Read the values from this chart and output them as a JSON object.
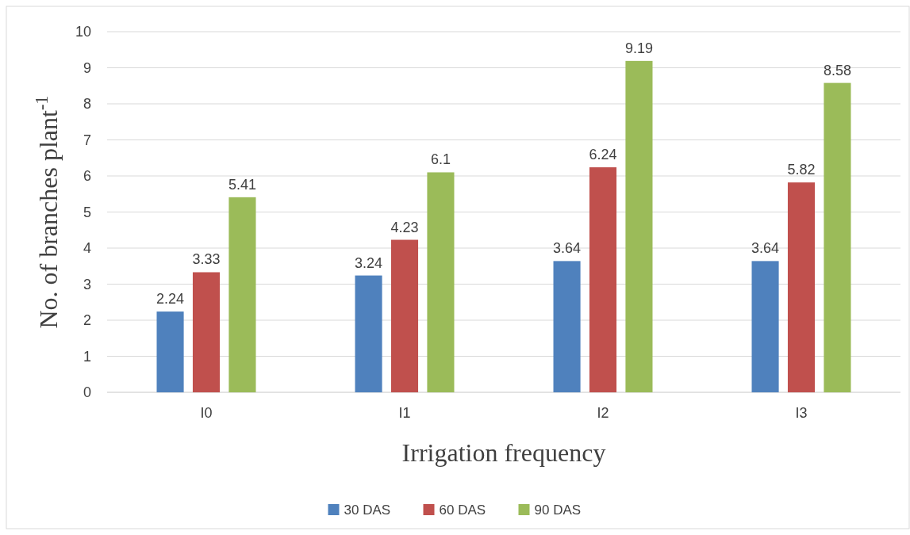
{
  "chart_data": {
    "type": "bar",
    "xlabel": "Irrigation frequency",
    "ylabel": "No. of  branches plant$^{-1}$",
    "categories": [
      "I0",
      "I1",
      "I2",
      "I3"
    ],
    "series": [
      {
        "name": "30 DAS",
        "color": "#4f81bd",
        "values": [
          2.24,
          3.24,
          3.64,
          3.64
        ]
      },
      {
        "name": "60 DAS",
        "color": "#c0504d",
        "values": [
          3.33,
          4.23,
          6.24,
          5.82
        ]
      },
      {
        "name": "90 DAS",
        "color": "#9bbb59",
        "values": [
          5.41,
          6.1,
          9.19,
          8.58
        ]
      }
    ],
    "ylim": [
      0,
      10
    ],
    "yticks": [
      0,
      1,
      2,
      3,
      4,
      5,
      6,
      7,
      8,
      9,
      10
    ],
    "grid": "y",
    "legend": "bottom",
    "data_labels": true
  }
}
